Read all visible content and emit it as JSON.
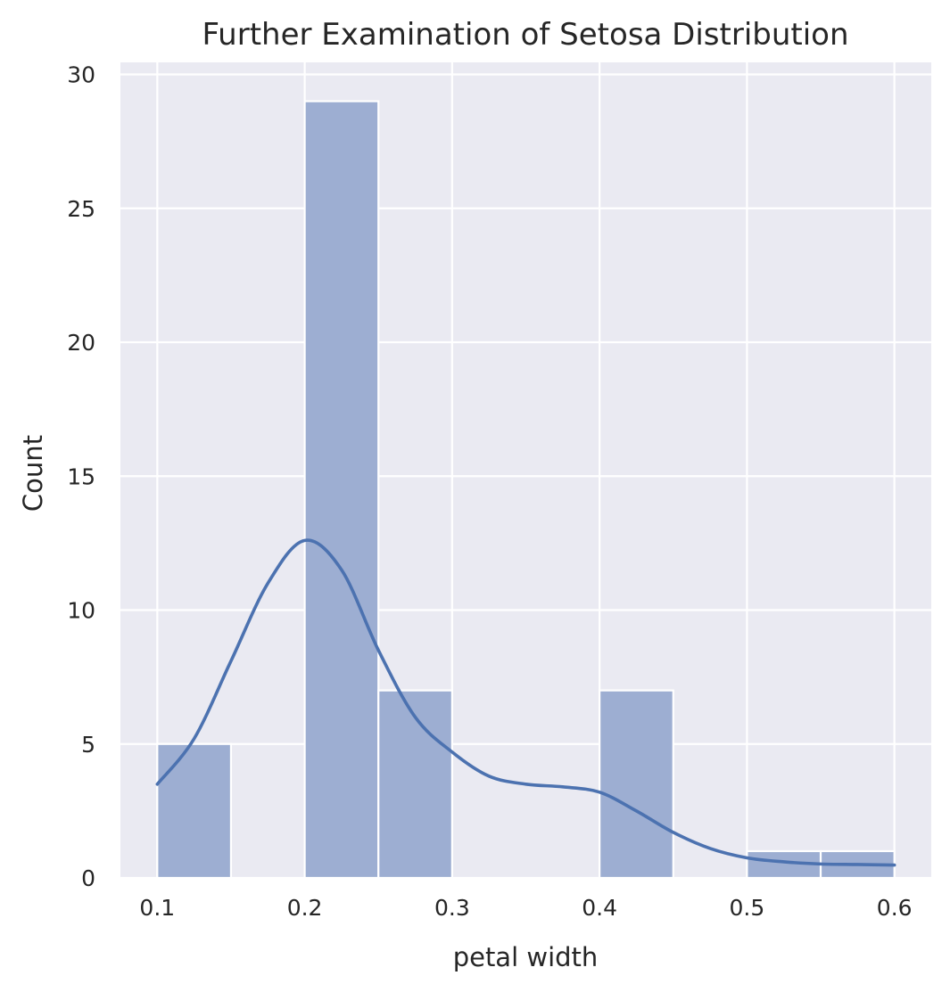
{
  "chart_data": {
    "type": "bar",
    "title": "Further Examination of Setosa Distribution",
    "xlabel": "petal width",
    "ylabel": "Count",
    "xlim": [
      0.075,
      0.625
    ],
    "ylim": [
      0,
      30.45
    ],
    "x_ticks": [
      "0.1",
      "0.2",
      "0.3",
      "0.4",
      "0.5",
      "0.6"
    ],
    "y_ticks": [
      "0",
      "5",
      "10",
      "15",
      "20",
      "25",
      "30"
    ],
    "bins": [
      {
        "x0": 0.1,
        "x1": 0.15,
        "count": 5
      },
      {
        "x0": 0.15,
        "x1": 0.2,
        "count": 0
      },
      {
        "x0": 0.2,
        "x1": 0.25,
        "count": 29
      },
      {
        "x0": 0.25,
        "x1": 0.3,
        "count": 7
      },
      {
        "x0": 0.3,
        "x1": 0.35,
        "count": 0
      },
      {
        "x0": 0.35,
        "x1": 0.4,
        "count": 0
      },
      {
        "x0": 0.4,
        "x1": 0.45,
        "count": 7
      },
      {
        "x0": 0.45,
        "x1": 0.5,
        "count": 0
      },
      {
        "x0": 0.5,
        "x1": 0.55,
        "count": 1
      },
      {
        "x0": 0.55,
        "x1": 0.6,
        "count": 1
      }
    ],
    "kde": {
      "x": [
        0.1,
        0.125,
        0.15,
        0.175,
        0.2,
        0.225,
        0.25,
        0.275,
        0.3,
        0.325,
        0.35,
        0.375,
        0.4,
        0.425,
        0.45,
        0.475,
        0.5,
        0.525,
        0.55,
        0.575,
        0.6
      ],
      "y": [
        3.5,
        5.2,
        8.1,
        11.0,
        12.6,
        11.5,
        8.5,
        6.0,
        4.7,
        3.8,
        3.5,
        3.4,
        3.2,
        2.5,
        1.7,
        1.1,
        0.75,
        0.6,
        0.52,
        0.5,
        0.48
      ]
    },
    "grid": true,
    "colors": {
      "plot_background": "#eaeaf2",
      "grid": "#ffffff",
      "bar_fill": "#9daed2",
      "bar_edge": "#ffffff",
      "kde_line": "#4c72b0",
      "text": "#262626"
    }
  }
}
